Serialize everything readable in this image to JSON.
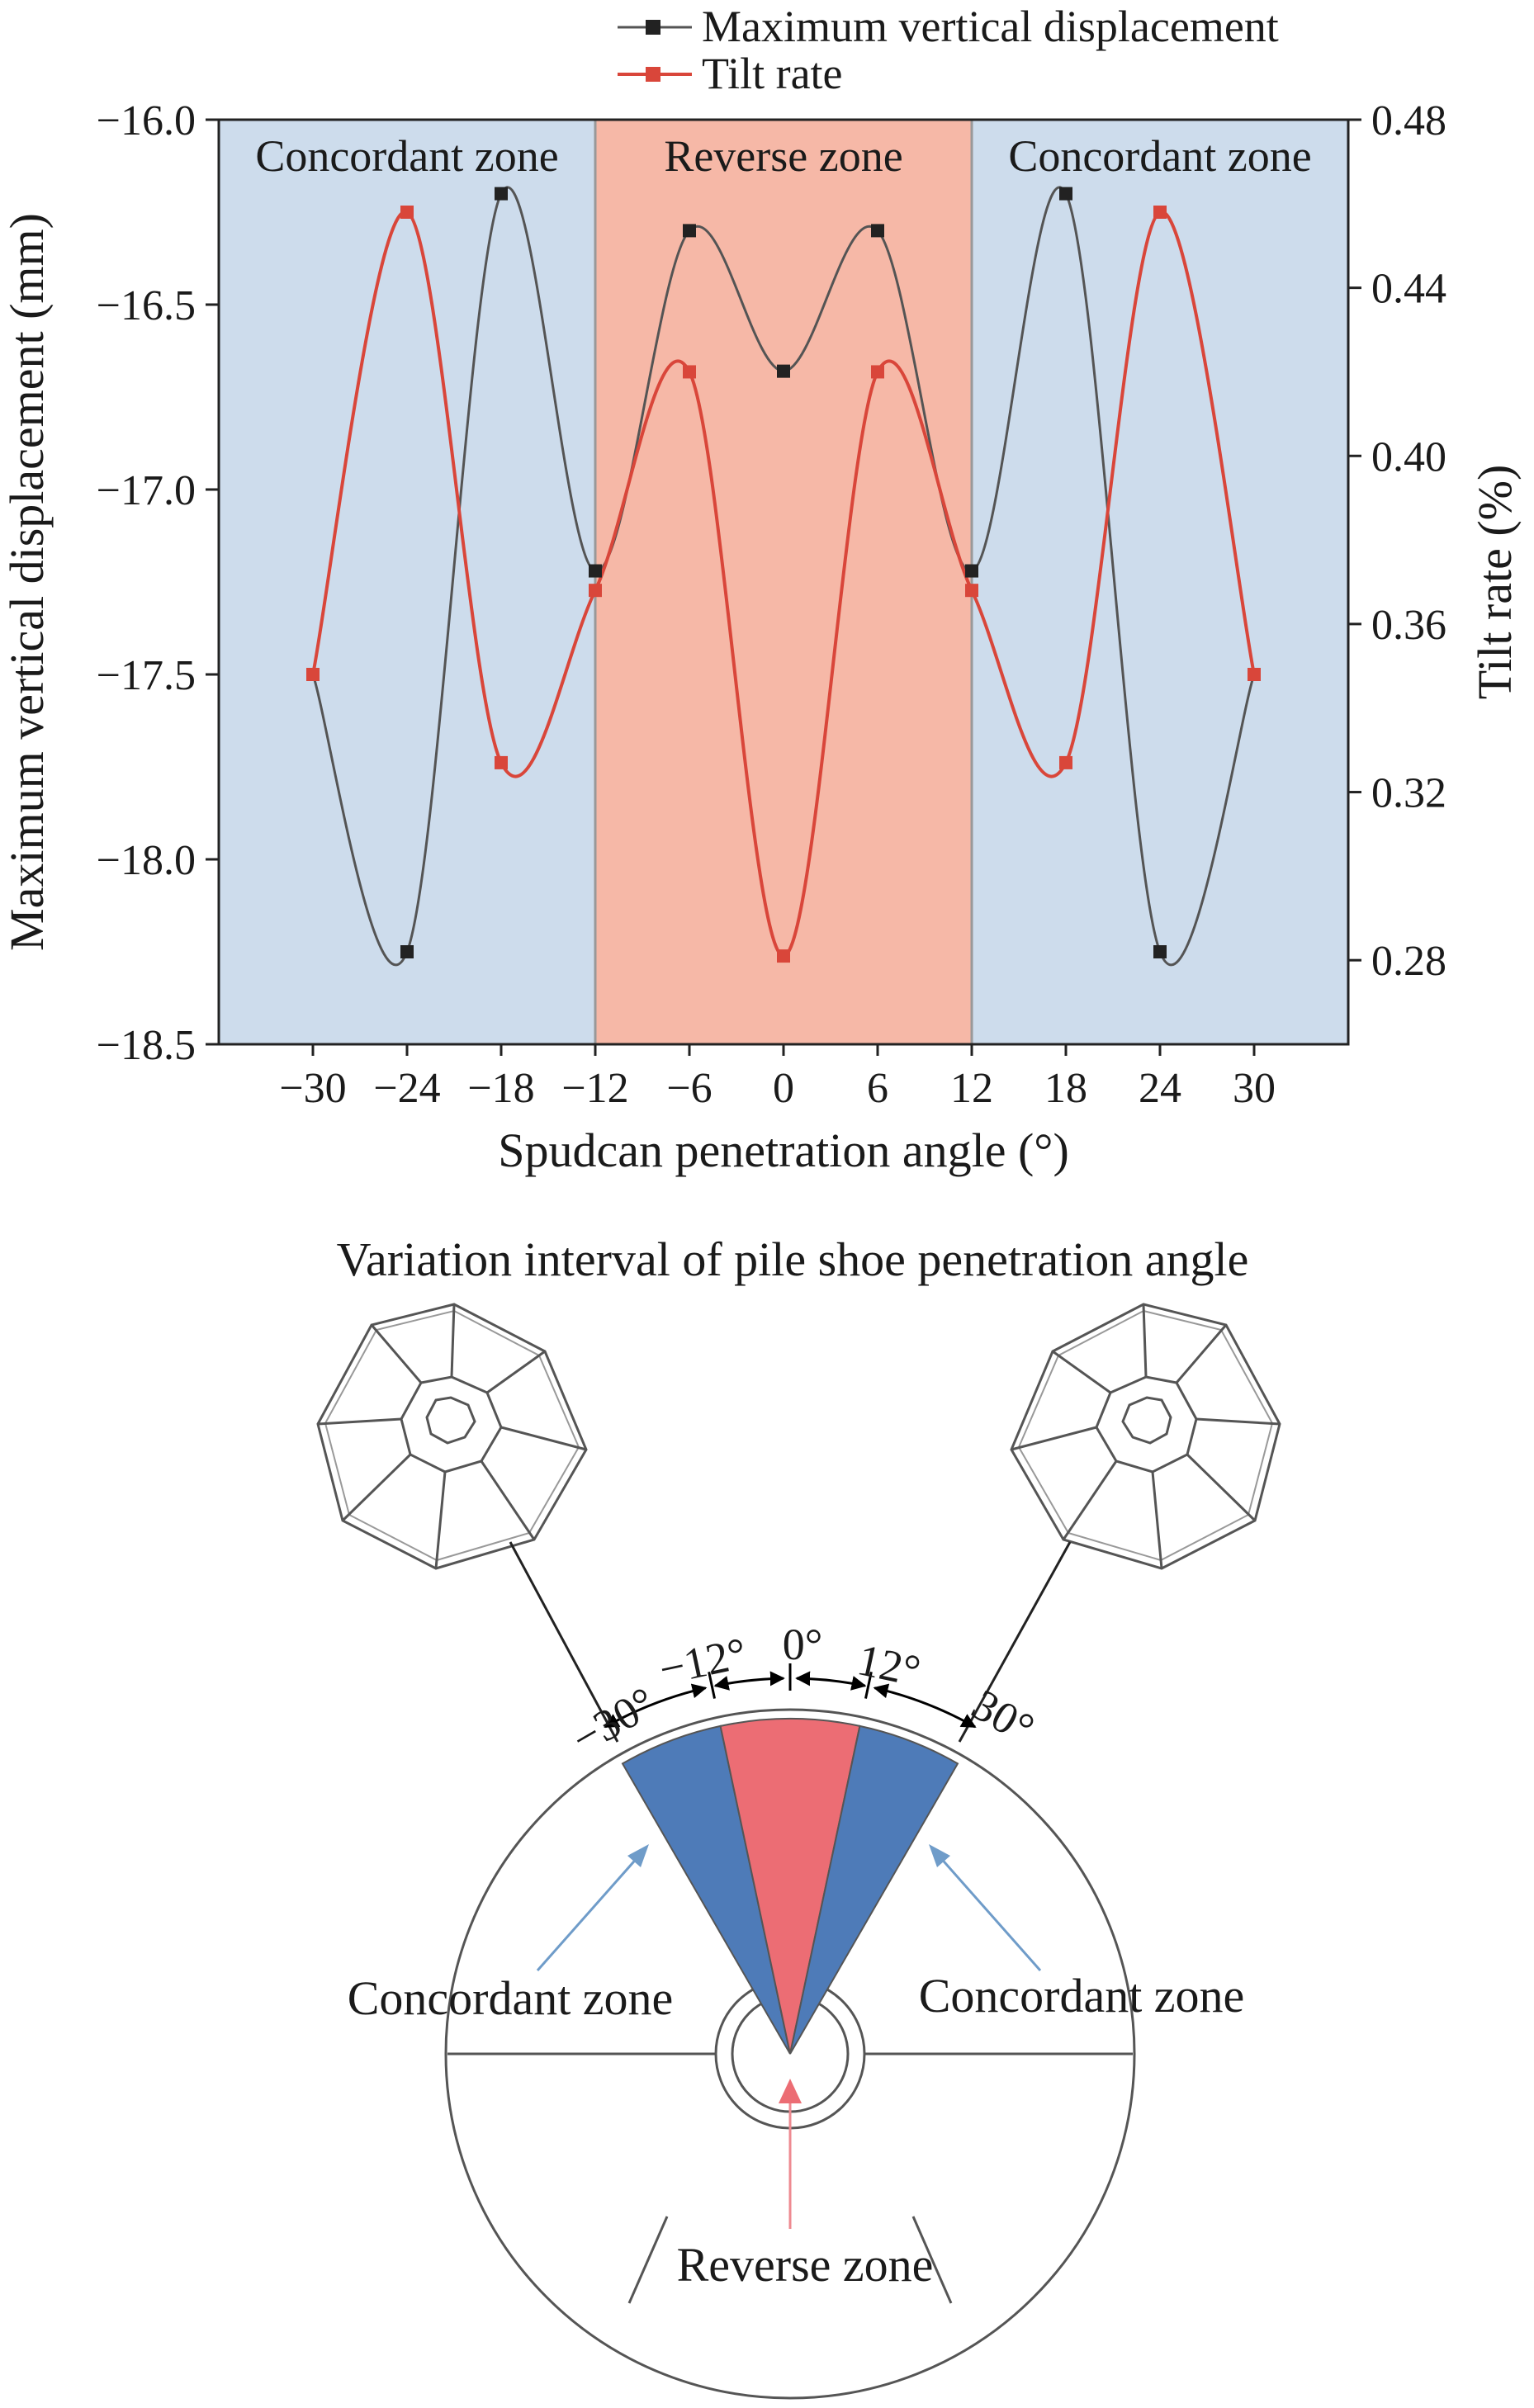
{
  "chart_data": {
    "type": "line",
    "legend": {
      "placement": "top",
      "entries": [
        "Maximum vertical displacement",
        "Tilt rate"
      ]
    },
    "x": [
      -30,
      -24,
      -18,
      -12,
      -6,
      0,
      6,
      12,
      18,
      24,
      30
    ],
    "x_tick_labels": [
      "−30",
      "−24",
      "−18",
      "−12",
      "−6",
      "0",
      "6",
      "12",
      "18",
      "24",
      "30"
    ],
    "xlabel": "Spudcan penetration angle (°)",
    "xlim": [
      -36,
      36
    ],
    "ylabel_left": "Maximum vertical displacement (mm)",
    "ylim_left": [
      -18.5,
      -16.0
    ],
    "y_left_ticks": [
      -16.0,
      -16.5,
      -17.0,
      -17.5,
      -18.0,
      -18.5
    ],
    "y_left_tick_labels": [
      "−16.0",
      "−16.5",
      "−17.0",
      "−17.5",
      "−18.0",
      "−18.5"
    ],
    "ylabel_right": "Tilt rate (%)",
    "ylim_right": [
      0.26,
      0.48
    ],
    "y_right_ticks": [
      0.48,
      0.44,
      0.4,
      0.36,
      0.32,
      0.28
    ],
    "y_right_tick_labels": [
      "0.48",
      "0.44",
      "0.40",
      "0.36",
      "0.32",
      "0.28"
    ],
    "zones": [
      {
        "label": "Concordant zone",
        "from": -36,
        "to": -12,
        "color": "#cddcec"
      },
      {
        "label": "Reverse zone",
        "from": -12,
        "to": 12,
        "color": "#f6b8a7"
      },
      {
        "label": "Concordant zone",
        "from": 12,
        "to": 36,
        "color": "#cddcec"
      }
    ],
    "series": [
      {
        "name": "Maximum vertical displacement",
        "axis": "left",
        "color": "#545454",
        "values": [
          -17.5,
          -18.25,
          -16.2,
          -17.22,
          -16.3,
          -16.68,
          -16.3,
          -17.22,
          -16.2,
          -18.25,
          -17.5
        ]
      },
      {
        "name": "Tilt rate",
        "axis": "right",
        "color": "#d9463a",
        "values": [
          0.348,
          0.458,
          0.327,
          0.368,
          0.42,
          0.281,
          0.42,
          0.368,
          0.327,
          0.458,
          0.348
        ]
      }
    ]
  },
  "schematic": {
    "title": "Variation interval of pile shoe penetration angle",
    "angle_labels": [
      "−30°",
      "−12°",
      "0°",
      "12°",
      "30°"
    ],
    "concordant_label_left": "Concordant zone",
    "concordant_label_right": "Concordant zone",
    "reverse_label": "Reverse zone",
    "concordant_color": "#4e7bb8",
    "reverse_color": "#ec6d74",
    "arrow_color_concordant": "#6f9cc9",
    "arrow_color_reverse": "#ee8a90"
  }
}
